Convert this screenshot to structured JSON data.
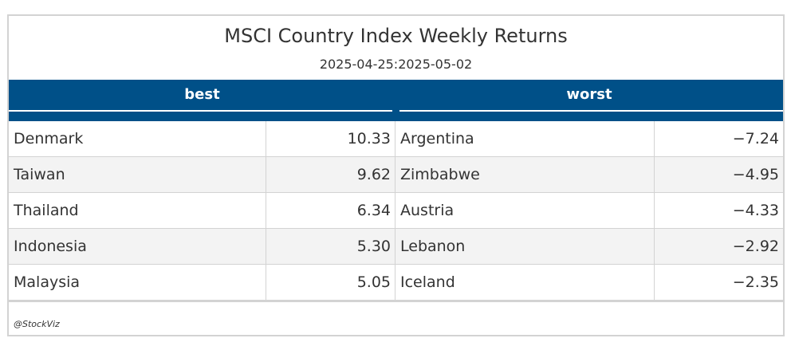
{
  "chart_data": {
    "type": "table",
    "title": "MSCI Country Index Weekly Returns",
    "subtitle": "2025-04-25:2025-05-02",
    "column_groups": [
      "best",
      "worst"
    ],
    "rows": [
      {
        "best_country": "Denmark",
        "best_value": "10.33",
        "worst_country": "Argentina",
        "worst_value": "−7.24"
      },
      {
        "best_country": "Taiwan",
        "best_value": "9.62",
        "worst_country": "Zimbabwe",
        "worst_value": "−4.95"
      },
      {
        "best_country": "Thailand",
        "best_value": "6.34",
        "worst_country": "Austria",
        "worst_value": "−4.33"
      },
      {
        "best_country": "Indonesia",
        "best_value": "5.30",
        "worst_country": "Lebanon",
        "worst_value": "−2.92"
      },
      {
        "best_country": "Malaysia",
        "best_value": "5.05",
        "worst_country": "Iceland",
        "worst_value": "−2.35"
      }
    ],
    "source_note": "@StockViz"
  },
  "colors": {
    "header_background": "#005088",
    "header_text": "#ffffff",
    "alternate_row": "#f3f3f3",
    "border": "#d3d3d3"
  }
}
